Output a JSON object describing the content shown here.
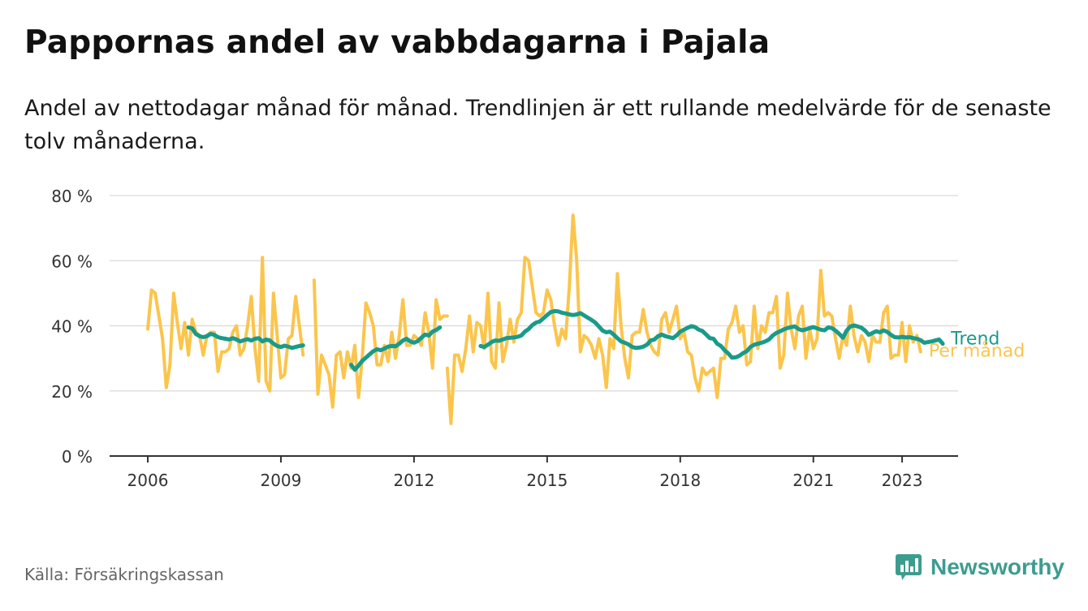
{
  "header": {
    "title": "Pappornas andel av vabbdagarna i Pajala",
    "subtitle": "Andel av nettodagar månad för månad. Trendlinjen är ett rullande medelvärde för de senaste tolv månaderna."
  },
  "footer": {
    "source": "Källa: Försäkringskassan",
    "brand": "Newsworthy",
    "brand_color": "#3d9c90"
  },
  "chart_data": {
    "type": "line",
    "title": "Pappornas andel av vabbdagarna i Pajala",
    "xlabel": "",
    "ylabel": "",
    "xlim": [
      2005.75,
      2024.0
    ],
    "ylim": [
      0,
      80
    ],
    "y_ticks": [
      0,
      20,
      40,
      60,
      80
    ],
    "y_tick_labels": [
      "0 %",
      "20 %",
      "40 %",
      "60 %",
      "80 %"
    ],
    "x_ticks": [
      2006,
      2009,
      2012,
      2015,
      2018,
      2021,
      2023
    ],
    "x_tick_labels": [
      "2006",
      "2009",
      "2012",
      "2015",
      "2018",
      "2021",
      "2023"
    ],
    "grid": true,
    "legend": "inline labels at right end of lines",
    "series": [
      {
        "name": "Per månad",
        "color": "#fbc54c",
        "segments": [
          {
            "start": 2006.0,
            "values": [
              39,
              51,
              50,
              43,
              36,
              21,
              28,
              50,
              41,
              33,
              41,
              31,
              42,
              38,
              37,
              31,
              37,
              38,
              38,
              26,
              32,
              32,
              33,
              38,
              40,
              31,
              33,
              40,
              49,
              33,
              23,
              61,
              23,
              20,
              50,
              37,
              24,
              25,
              36,
              37,
              49,
              40,
              31
            ]
          },
          {
            "start": 2009.75,
            "values": [
              54,
              19,
              31,
              28,
              25,
              15,
              31,
              32,
              24,
              32,
              27,
              34,
              18,
              30,
              47,
              44,
              40,
              28,
              28,
              34,
              29,
              38,
              30,
              37,
              48,
              34,
              34,
              37,
              36,
              34,
              44,
              38,
              27,
              48,
              42,
              43,
              43
            ]
          },
          {
            "start": 2012.75,
            "values": [
              27,
              10,
              31,
              31,
              26,
              33,
              43,
              32,
              41,
              40,
              33,
              50,
              29,
              27,
              47,
              29,
              34,
              42,
              35,
              42,
              44,
              61,
              60,
              52,
              44,
              43,
              44,
              51,
              48,
              40,
              34,
              39,
              36,
              52,
              74,
              60,
              32,
              37,
              36,
              34,
              30,
              36,
              31,
              21,
              36,
              33,
              56,
              40,
              30,
              24,
              37,
              38,
              38,
              45,
              38,
              34,
              32,
              31,
              42,
              44,
              38,
              42,
              46,
              36,
              38,
              32,
              31,
              24,
              20,
              27,
              25,
              26,
              27,
              18,
              30,
              30,
              39,
              41,
              46,
              38,
              40,
              28,
              29,
              46,
              33,
              40,
              38,
              44,
              44,
              49,
              27,
              31,
              50,
              39,
              33,
              43,
              46,
              30,
              39,
              33,
              36,
              57,
              43,
              44,
              43,
              36,
              30,
              37,
              34,
              46,
              37,
              32,
              37,
              35,
              29,
              37,
              35,
              35,
              44,
              46,
              30,
              31,
              31,
              41,
              29,
              40,
              35,
              37,
              32
            ]
          }
        ]
      },
      {
        "name": "Trend",
        "color": "#1a9a8a",
        "segments": [
          {
            "start": 2006.917,
            "values": [
              39.5,
              39.2,
              37.5,
              36.8,
              36.5,
              36.8,
              37.5,
              37.2,
              36.5,
              36.2,
              36.0,
              35.8,
              36.2,
              35.8,
              35.2,
              35.6,
              35.9,
              35.5,
              36.0,
              36.2,
              35.2,
              35.8,
              35.5,
              34.5,
              33.8,
              33.5,
              33.9,
              33.6,
              33.2,
              33.5,
              33.8,
              34.0
            ]
          },
          {
            "start": 2010.583,
            "values": [
              28.0,
              26.5,
              27.8,
              29.2,
              30.2,
              31.2,
              32.2,
              32.8,
              32.5,
              33.0,
              33.6,
              33.8,
              33.7,
              34.5,
              35.5,
              36.0,
              35.2,
              34.8,
              35.3,
              36.3,
              37.3,
              37.0,
              38.2,
              38.7,
              39.5
            ]
          },
          {
            "start": 2013.5,
            "values": [
              33.8,
              33.5,
              34.2,
              35.0,
              35.5,
              35.4,
              35.8,
              36.2,
              36.3,
              36.4,
              36.6,
              37.0,
              38.2,
              39.0,
              40.2,
              41.0,
              41.3,
              42.3,
              43.3,
              44.2,
              44.5,
              44.4,
              44.0,
              43.8,
              43.5,
              43.3,
              43.5,
              43.9,
              43.2,
              42.5,
              41.8,
              41.0,
              39.8,
              38.5,
              38.0,
              38.2,
              37.3,
              36.2,
              35.2,
              34.8,
              34.3,
              33.5,
              33.2,
              33.3,
              33.6,
              34.2,
              35.5,
              35.8,
              36.8,
              37.3,
              36.8,
              36.5,
              36.2,
              37.0,
              38.2,
              38.8,
              39.4,
              39.9,
              39.6,
              38.8,
              38.4,
              37.3,
              36.2,
              36.0,
              34.5,
              33.8,
              32.5,
              31.5,
              30.2,
              30.3,
              30.8,
              31.6,
              32.2,
              33.5,
              34.2,
              34.5,
              34.8,
              35.2,
              35.8,
              37.0,
              37.8,
              38.3,
              38.9,
              39.3,
              39.6,
              39.8,
              39.0,
              38.6,
              38.9,
              39.3,
              39.6,
              39.2,
              38.8,
              38.6,
              39.5,
              39.3,
              38.5,
              37.5,
              36.3,
              38.5,
              39.8,
              40.1,
              39.8,
              39.4,
              38.5,
              37.2,
              37.8,
              38.3,
              38.0,
              38.6,
              38.1,
              37.2,
              36.5,
              36.4,
              36.6,
              36.4,
              36.5,
              36.2,
              36.0,
              35.6,
              34.8,
              35.0,
              35.2,
              35.5,
              35.8,
              34.5
            ]
          }
        ]
      }
    ],
    "line_labels": [
      {
        "text": "Trend",
        "series": "Trend"
      },
      {
        "text": "Per månad",
        "series": "Per månad"
      }
    ]
  }
}
